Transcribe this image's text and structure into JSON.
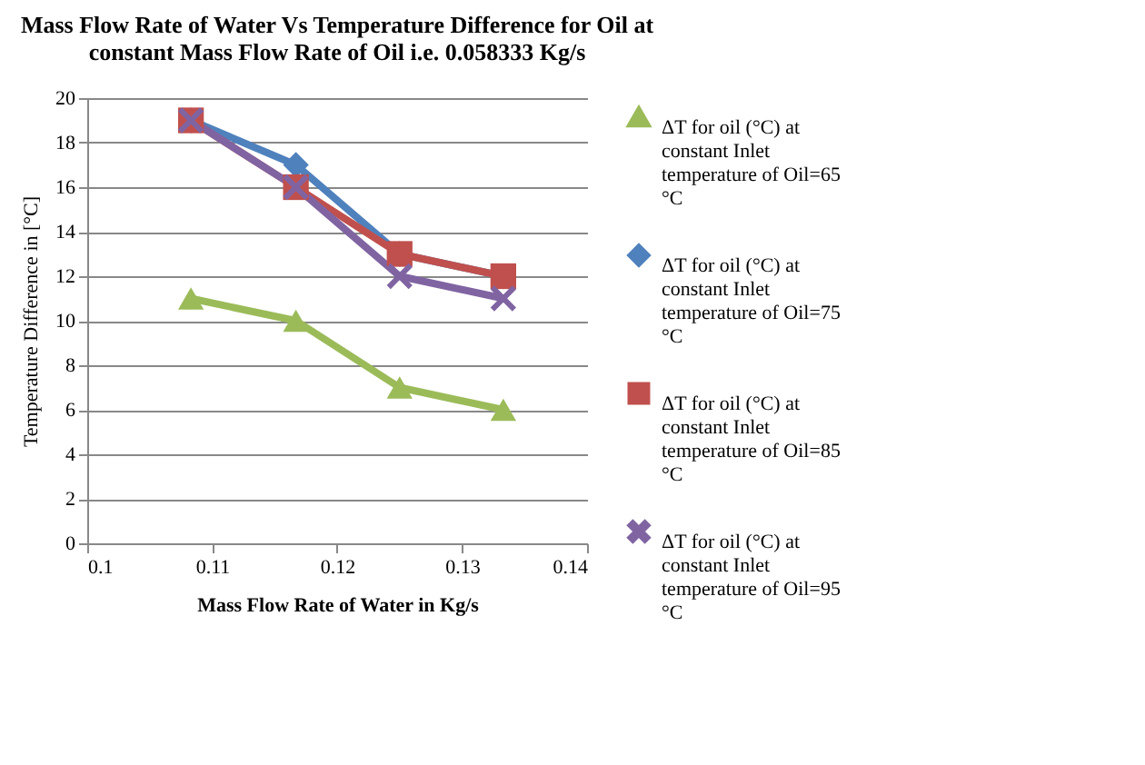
{
  "chart_data": {
    "type": "line",
    "title": "Mass Flow Rate of Water Vs Temperature Difference for Oil at constant Mass Flow Rate of Oil i.e. 0.058333 Kg/s",
    "xlabel": "Mass Flow Rate of Water in Kg/s",
    "ylabel": "Temperature Difference in [°C]",
    "x": [
      0.1083,
      0.1167,
      0.125,
      0.1333
    ],
    "series": [
      {
        "name": "ΔT for oil (°C) at constant Inlet temperature of Oil=65 °C",
        "color": "#9bbb59",
        "marker": "triangle",
        "values": [
          11,
          10,
          7,
          6
        ]
      },
      {
        "name": "ΔT for oil (°C) at constant Inlet temperature of Oil=75 °C",
        "color": "#4f81bd",
        "marker": "diamond",
        "values": [
          19,
          17,
          13,
          12
        ]
      },
      {
        "name": "ΔT for oil (°C) at constant Inlet temperature of Oil=85 °C",
        "color": "#c0504d",
        "marker": "square",
        "values": [
          19,
          16,
          13,
          12
        ]
      },
      {
        "name": "ΔT for oil (°C) at constant Inlet temperature of Oil=95 °C",
        "color": "#8064a2",
        "marker": "cross",
        "values": [
          19,
          16,
          12,
          11
        ]
      }
    ],
    "xlim": [
      0.1,
      0.14
    ],
    "xticks": [
      0.1,
      0.11,
      0.12,
      0.13,
      0.14
    ],
    "ylim": [
      0,
      20
    ],
    "yticks": [
      0,
      2,
      4,
      6,
      8,
      10,
      12,
      14,
      16,
      18,
      20
    ],
    "grid": "y",
    "legend": "right",
    "line_style": "solid"
  }
}
